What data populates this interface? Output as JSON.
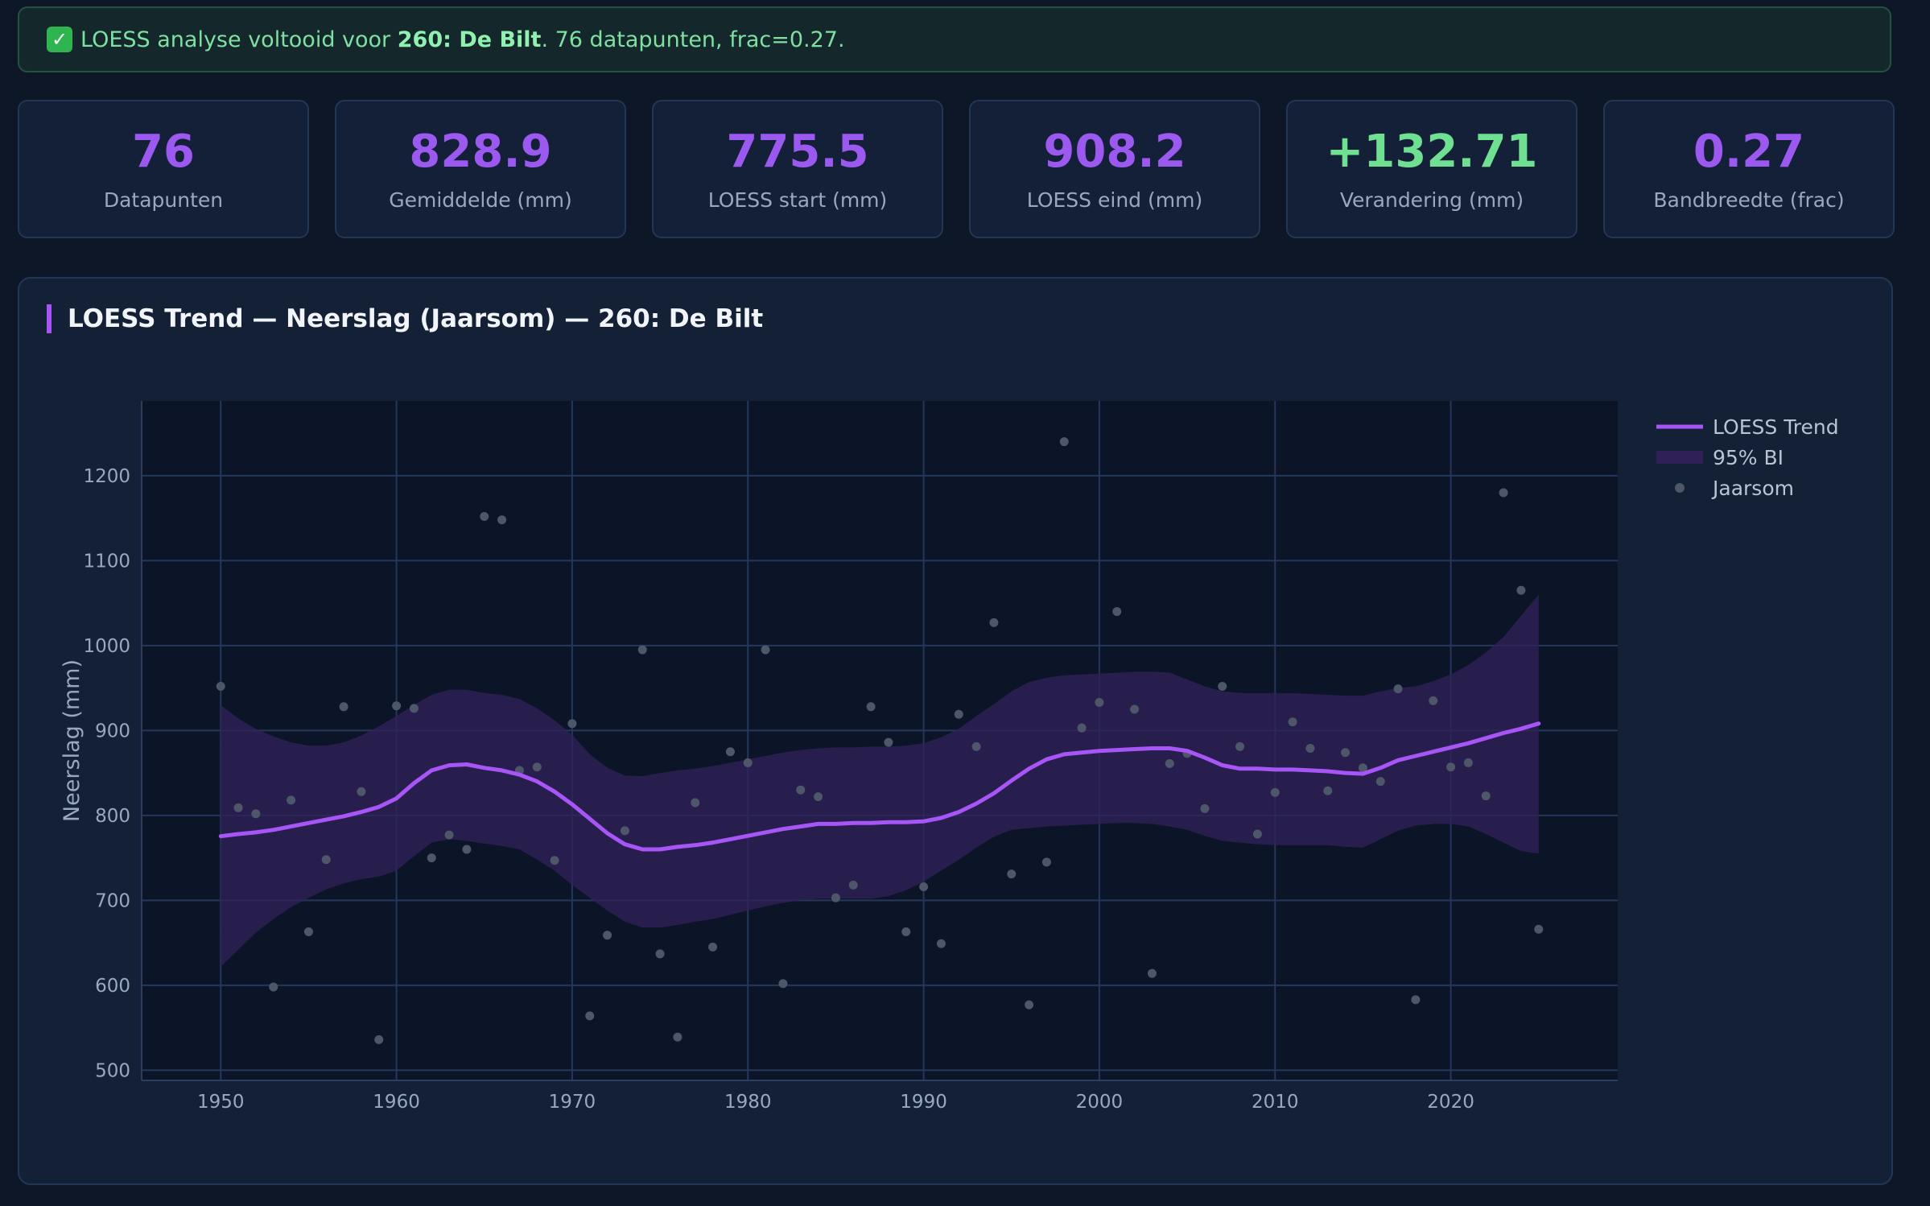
{
  "banner": {
    "icon": "check-icon",
    "prefix": "LOESS analyse voltooid voor ",
    "station": "260: De Bilt",
    "suffix": ". 76 datapunten, frac=0.27."
  },
  "stats": [
    {
      "value": "76",
      "label": "Datapunten",
      "color": "#9b59f0"
    },
    {
      "value": "828.9",
      "label": "Gemiddelde (mm)",
      "color": "#9b59f0"
    },
    {
      "value": "775.5",
      "label": "LOESS start (mm)",
      "color": "#9b59f0"
    },
    {
      "value": "908.2",
      "label": "LOESS eind (mm)",
      "color": "#9b59f0"
    },
    {
      "value": "+132.71",
      "label": "Verandering (mm)",
      "color": "#6fe092"
    },
    {
      "value": "0.27",
      "label": "Bandbreedte (frac)",
      "color": "#9b59f0"
    }
  ],
  "panel": {
    "title": "LOESS Trend — Neerslag (Jaarsom) — 260: De Bilt"
  },
  "chart_data": {
    "type": "line",
    "ylabel": "Neerslag (mm)",
    "xlabel": "",
    "xlim": [
      1945.5,
      2029.5
    ],
    "ylim": [
      488,
      1288
    ],
    "xticks": [
      1950,
      1960,
      1970,
      1980,
      1990,
      2000,
      2010,
      2020
    ],
    "yticks": [
      500,
      600,
      700,
      800,
      900,
      1000,
      1100,
      1200
    ],
    "grid": true,
    "legend_position": "top-right",
    "legend": [
      "LOESS Trend",
      "95% BI",
      "Jaarsom"
    ],
    "colors": {
      "trend": "#a855f7",
      "band": "#2f2158",
      "points": "#4e566a"
    },
    "series": [
      {
        "name": "Jaarsom",
        "type": "scatter",
        "x": [
          1950,
          1951,
          1952,
          1953,
          1954,
          1955,
          1956,
          1957,
          1958,
          1959,
          1960,
          1961,
          1962,
          1963,
          1964,
          1965,
          1966,
          1967,
          1968,
          1969,
          1970,
          1971,
          1972,
          1973,
          1974,
          1975,
          1976,
          1977,
          1978,
          1979,
          1980,
          1981,
          1982,
          1983,
          1984,
          1985,
          1986,
          1987,
          1988,
          1989,
          1990,
          1991,
          1992,
          1993,
          1994,
          1995,
          1996,
          1997,
          1998,
          1999,
          2000,
          2001,
          2002,
          2003,
          2004,
          2005,
          2006,
          2007,
          2008,
          2009,
          2010,
          2011,
          2012,
          2013,
          2014,
          2015,
          2016,
          2017,
          2018,
          2019,
          2020,
          2021,
          2022,
          2023,
          2024,
          2025
        ],
        "y": [
          952,
          809,
          802,
          598,
          818,
          663,
          748,
          928,
          828,
          536,
          929,
          926,
          750,
          777,
          760,
          1152,
          1148,
          853,
          857,
          747,
          908,
          564,
          659,
          782,
          995,
          637,
          539,
          815,
          645,
          875,
          862,
          995,
          602,
          830,
          822,
          703,
          718,
          928,
          886,
          663,
          716,
          649,
          919,
          881,
          1027,
          731,
          577,
          745,
          1240,
          903,
          933,
          1040,
          925,
          614,
          861,
          873,
          808,
          952,
          881,
          778,
          827,
          910,
          879,
          829,
          874,
          856,
          840,
          949,
          583,
          935,
          857,
          862,
          823,
          1180,
          1065,
          666
        ]
      },
      {
        "name": "LOESS Trend",
        "type": "line",
        "x": [
          1950,
          1951,
          1952,
          1953,
          1954,
          1955,
          1956,
          1957,
          1958,
          1959,
          1960,
          1961,
          1962,
          1963,
          1964,
          1965,
          1966,
          1967,
          1968,
          1969,
          1970,
          1971,
          1972,
          1973,
          1974,
          1975,
          1976,
          1977,
          1978,
          1979,
          1980,
          1981,
          1982,
          1983,
          1984,
          1985,
          1986,
          1987,
          1988,
          1989,
          1990,
          1991,
          1992,
          1993,
          1994,
          1995,
          1996,
          1997,
          1998,
          1999,
          2000,
          2001,
          2002,
          2003,
          2004,
          2005,
          2006,
          2007,
          2008,
          2009,
          2010,
          2011,
          2012,
          2013,
          2014,
          2015,
          2016,
          2017,
          2018,
          2019,
          2020,
          2021,
          2022,
          2023,
          2024,
          2025
        ],
        "y": [
          775.5,
          778,
          780,
          783,
          787,
          791,
          795,
          799,
          804,
          810,
          820,
          838,
          853,
          859,
          860,
          856,
          853,
          848,
          840,
          828,
          813,
          796,
          779,
          766,
          760,
          760,
          763,
          765,
          768,
          772,
          776,
          780,
          784,
          787,
          790,
          790,
          791,
          791,
          792,
          792,
          793,
          797,
          804,
          814,
          826,
          841,
          855,
          866,
          872,
          874,
          876,
          877,
          878,
          879,
          879,
          876,
          868,
          859,
          855,
          855,
          854,
          854,
          853,
          852,
          850,
          849,
          856,
          865,
          870,
          875,
          880,
          885,
          891,
          897,
          902,
          908.2
        ],
        "lower": [
          622,
          642,
          662,
          678,
          692,
          703,
          713,
          720,
          725,
          728,
          735,
          752,
          768,
          772,
          770,
          767,
          764,
          760,
          748,
          735,
          718,
          703,
          688,
          675,
          668,
          668,
          671,
          675,
          678,
          683,
          688,
          693,
          697,
          700,
          702,
          702,
          702,
          702,
          705,
          712,
          722,
          735,
          748,
          762,
          775,
          783,
          785,
          787,
          788,
          789,
          790,
          791,
          791,
          790,
          787,
          783,
          776,
          770,
          768,
          766,
          765,
          765,
          765,
          765,
          763,
          762,
          772,
          782,
          788,
          790,
          790,
          787,
          778,
          768,
          758,
          755
        ],
        "upper": [
          930,
          914,
          902,
          893,
          886,
          882,
          882,
          886,
          894,
          905,
          917,
          930,
          942,
          948,
          948,
          944,
          942,
          937,
          926,
          912,
          895,
          872,
          856,
          847,
          846,
          850,
          853,
          855,
          858,
          862,
          866,
          870,
          874,
          877,
          879,
          880,
          880,
          881,
          881,
          882,
          885,
          892,
          902,
          917,
          931,
          946,
          957,
          962,
          965,
          966,
          967,
          968,
          969,
          969,
          968,
          960,
          952,
          946,
          944,
          944,
          944,
          944,
          943,
          942,
          941,
          941,
          946,
          950,
          952,
          958,
          966,
          977,
          992,
          1010,
          1035,
          1060
        ]
      }
    ]
  }
}
